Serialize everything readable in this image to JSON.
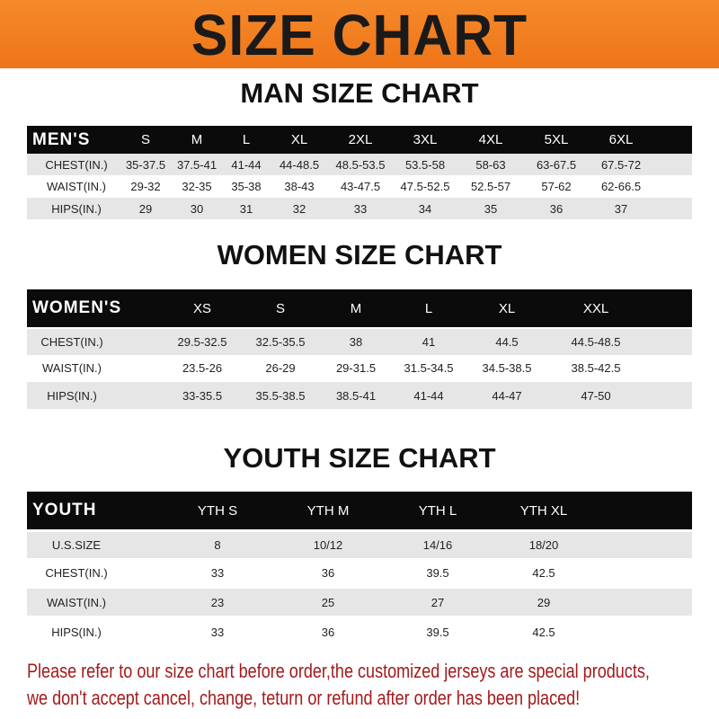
{
  "banner": {
    "title": "SIZE CHART",
    "color": "#f07f1e"
  },
  "men": {
    "title": "MAN SIZE CHART",
    "header": [
      "MEN'S",
      "S",
      "M",
      "L",
      "XL",
      "2XL",
      "3XL",
      "4XL",
      "5XL",
      "6XL"
    ],
    "rows": [
      [
        "CHEST(IN.)",
        "35-37.5",
        "37.5-41",
        "41-44",
        "44-48.5",
        "48.5-53.5",
        "53.5-58",
        "58-63",
        "63-67.5",
        "67.5-72"
      ],
      [
        "WAIST(IN.)",
        "29-32",
        "32-35",
        "35-38",
        "38-43",
        "43-47.5",
        "47.5-52.5",
        "52.5-57",
        "57-62",
        "62-66.5"
      ],
      [
        "HIPS(IN.)",
        "29",
        "30",
        "31",
        "32",
        "33",
        "34",
        "35",
        "36",
        "37"
      ]
    ]
  },
  "women": {
    "title": "WOMEN SIZE CHART",
    "header": [
      "WOMEN'S",
      "XS",
      "S",
      "M",
      "L",
      "XL",
      "XXL"
    ],
    "rows": [
      [
        "CHEST(IN.)",
        "29.5-32.5",
        "32.5-35.5",
        "38",
        "41",
        "44.5",
        "44.5-48.5"
      ],
      [
        "WAIST(IN.)",
        "23.5-26",
        "26-29",
        "29-31.5",
        "31.5-34.5",
        "34.5-38.5",
        "38.5-42.5"
      ],
      [
        "HIPS(IN.)",
        "33-35.5",
        "35.5-38.5",
        "38.5-41",
        "41-44",
        "44-47",
        "47-50"
      ]
    ]
  },
  "youth": {
    "title": "YOUTH SIZE CHART",
    "header": [
      "YOUTH",
      "YTH S",
      "YTH M",
      "YTH L",
      "YTH XL"
    ],
    "rows": [
      [
        "U.S.SIZE",
        "8",
        "10/12",
        "14/16",
        "18/20"
      ],
      [
        "CHEST(IN.)",
        "33",
        "36",
        "39.5",
        "42.5"
      ],
      [
        "WAIST(IN.)",
        "23",
        "25",
        "27",
        "29"
      ],
      [
        "HIPS(IN.)",
        "33",
        "36",
        "39.5",
        "42.5"
      ]
    ]
  },
  "footer": {
    "line1": "Please refer to our size chart before order,the customized jerseys are special products,",
    "line2": "we don't accept cancel, change, teturn or refund after order has been placed!",
    "color": "#a4191c"
  }
}
